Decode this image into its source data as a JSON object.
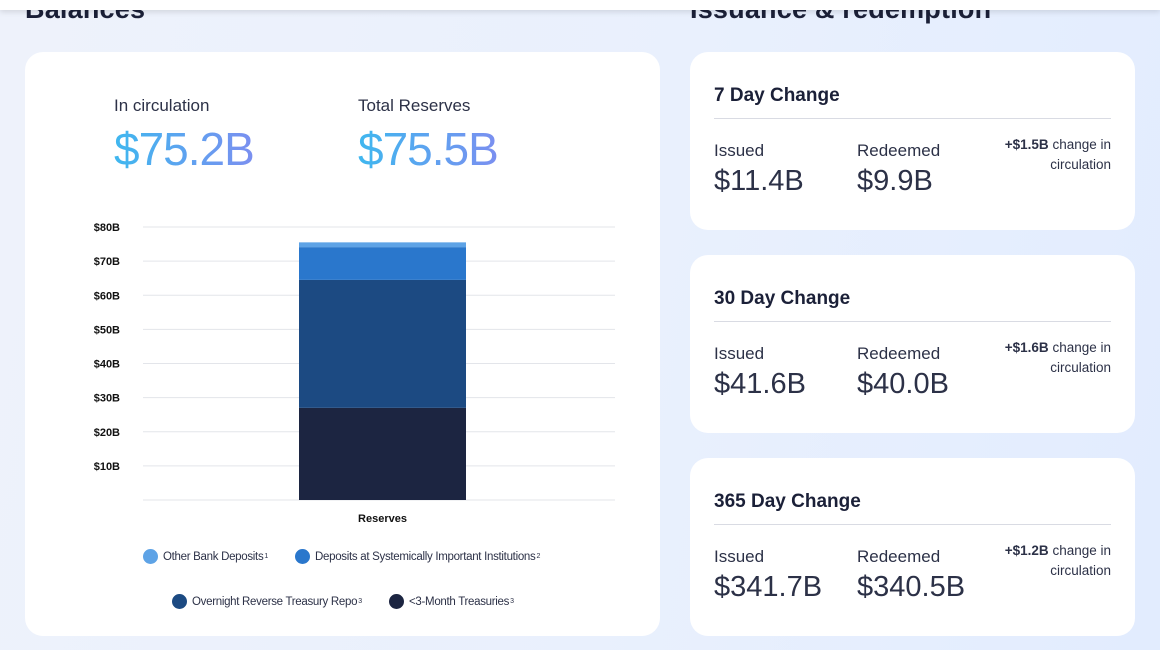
{
  "balances": {
    "title": "Balances",
    "in_circulation_label": "In circulation",
    "in_circulation_value": "$75.2B",
    "total_reserves_label": "Total Reserves",
    "total_reserves_value": "$75.5B"
  },
  "chart_data": {
    "type": "bar",
    "stacked": true,
    "categories": [
      "Reserves"
    ],
    "series": [
      {
        "name": "<3-Month Treasuries",
        "values": [
          27.0
        ],
        "color": "#1c2541"
      },
      {
        "name": "Overnight Reverse Treasury Repo",
        "values": [
          37.5
        ],
        "color": "#1c4a82"
      },
      {
        "name": "Deposits at Systemically Important Institutions",
        "values": [
          9.6
        ],
        "color": "#2a77cc"
      },
      {
        "name": "Other Bank Deposits",
        "values": [
          1.4
        ],
        "color": "#5ea3e6"
      }
    ],
    "y_ticks": [
      "$10B",
      "$20B",
      "$30B",
      "$40B",
      "$50B",
      "$60B",
      "$70B",
      "$80B"
    ],
    "ylim": [
      0,
      80
    ],
    "grid": true
  },
  "legend": [
    {
      "label": "Other Bank Deposits",
      "sup": "1",
      "color": "#5ea3e6"
    },
    {
      "label": "Deposits at Systemically Important Institutions",
      "sup": "2",
      "color": "#2a77cc"
    },
    {
      "label": "Overnight Reverse Treasury Repo",
      "sup": "3",
      "color": "#1c4a82"
    },
    {
      "label": "<3-Month Treasuries",
      "sup": "3",
      "color": "#1c2541"
    }
  ],
  "issuance": {
    "title": "Issuance & redemption",
    "cards": [
      {
        "title": "7 Day Change",
        "issued_label": "Issued",
        "issued_value": "$11.4B",
        "redeemed_label": "Redeemed",
        "redeemed_value": "$9.9B",
        "change_amount": "+$1.5B",
        "change_text": " change in circulation"
      },
      {
        "title": "30 Day Change",
        "issued_label": "Issued",
        "issued_value": "$41.6B",
        "redeemed_label": "Redeemed",
        "redeemed_value": "$40.0B",
        "change_amount": "+$1.6B",
        "change_text": " change in circulation"
      },
      {
        "title": "365 Day Change",
        "issued_label": "Issued",
        "issued_value": "$341.7B",
        "redeemed_label": "Redeemed",
        "redeemed_value": "$340.5B",
        "change_amount": "+$1.2B",
        "change_text": " change in circulation"
      }
    ]
  }
}
